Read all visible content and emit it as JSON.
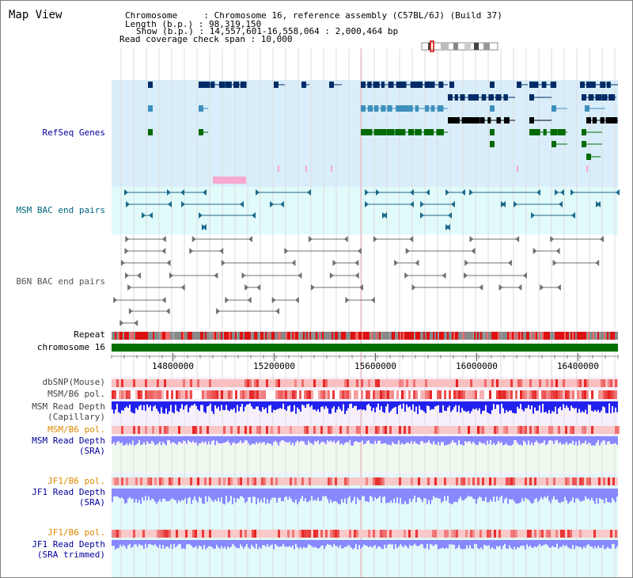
{
  "title": "Map View",
  "info": {
    "line1": "Chromosome     : Chromosome 16, reference assembly (C57BL/6J) (Build 37)",
    "line2": "Length (b.p.) : 98,319,150",
    "line3": "Show (b.p.) : 14,557,601-16,558,064 : 2,000,464 bp",
    "line4": "Read coverage check span : 10,000"
  },
  "tracks": {
    "refseq": "RefSeq Genes",
    "msm_bac": "MSM BAC end pairs",
    "b6n_bac": "B6N BAC end pairs",
    "repeat": "Repeat",
    "chromosome": "chromosome 16",
    "dbsnp": "dbSNP(Mouse)",
    "msm_b6_pol_1": "MSM/B6 pol.",
    "msm_depth_cap_1": "MSM Read Depth",
    "msm_depth_cap_2": "(Capillary)",
    "msm_b6_pol_2": "MSM/B6 pol.",
    "msm_depth_sra_1": "MSM Read Depth",
    "msm_depth_sra_2": "(SRA)",
    "jf1_b6_pol_1": "JF1/B6 pol.",
    "jf1_depth_sra_1": "JF1 Read Depth",
    "jf1_depth_sra_2": "(SRA)",
    "jf1_b6_pol_2": "JF1/B6 pol.",
    "jf1_depth_trim_1": "JF1 Read Depth",
    "jf1_depth_trim_2": "(SRA trimmed)"
  },
  "axis": {
    "ticks": [
      "14800000",
      "15200000",
      "15600000",
      "16000000",
      "16400000"
    ],
    "tick_values": [
      14800000,
      15200000,
      15600000,
      16000000,
      16400000
    ],
    "range": [
      14557601,
      16558064
    ]
  },
  "colors": {
    "refseq_bg": "#d9eefa",
    "msm_bg": "#e1fafa",
    "lower_bg": "#e1fafa",
    "gene_dark": "#002b66",
    "gene_mid": "#3d8fbd",
    "gene_green": "#006a00",
    "msm_bac": "#1a6a8a",
    "b6n_bac": "#707070",
    "chromosome": "#007000",
    "depth_capillary": "#2222ee",
    "depth_sra": "#8888ff",
    "pol": "#ee3333",
    "label_blue": "#000099",
    "label_teal": "#006680",
    "label_orange": "#dd8800"
  }
}
